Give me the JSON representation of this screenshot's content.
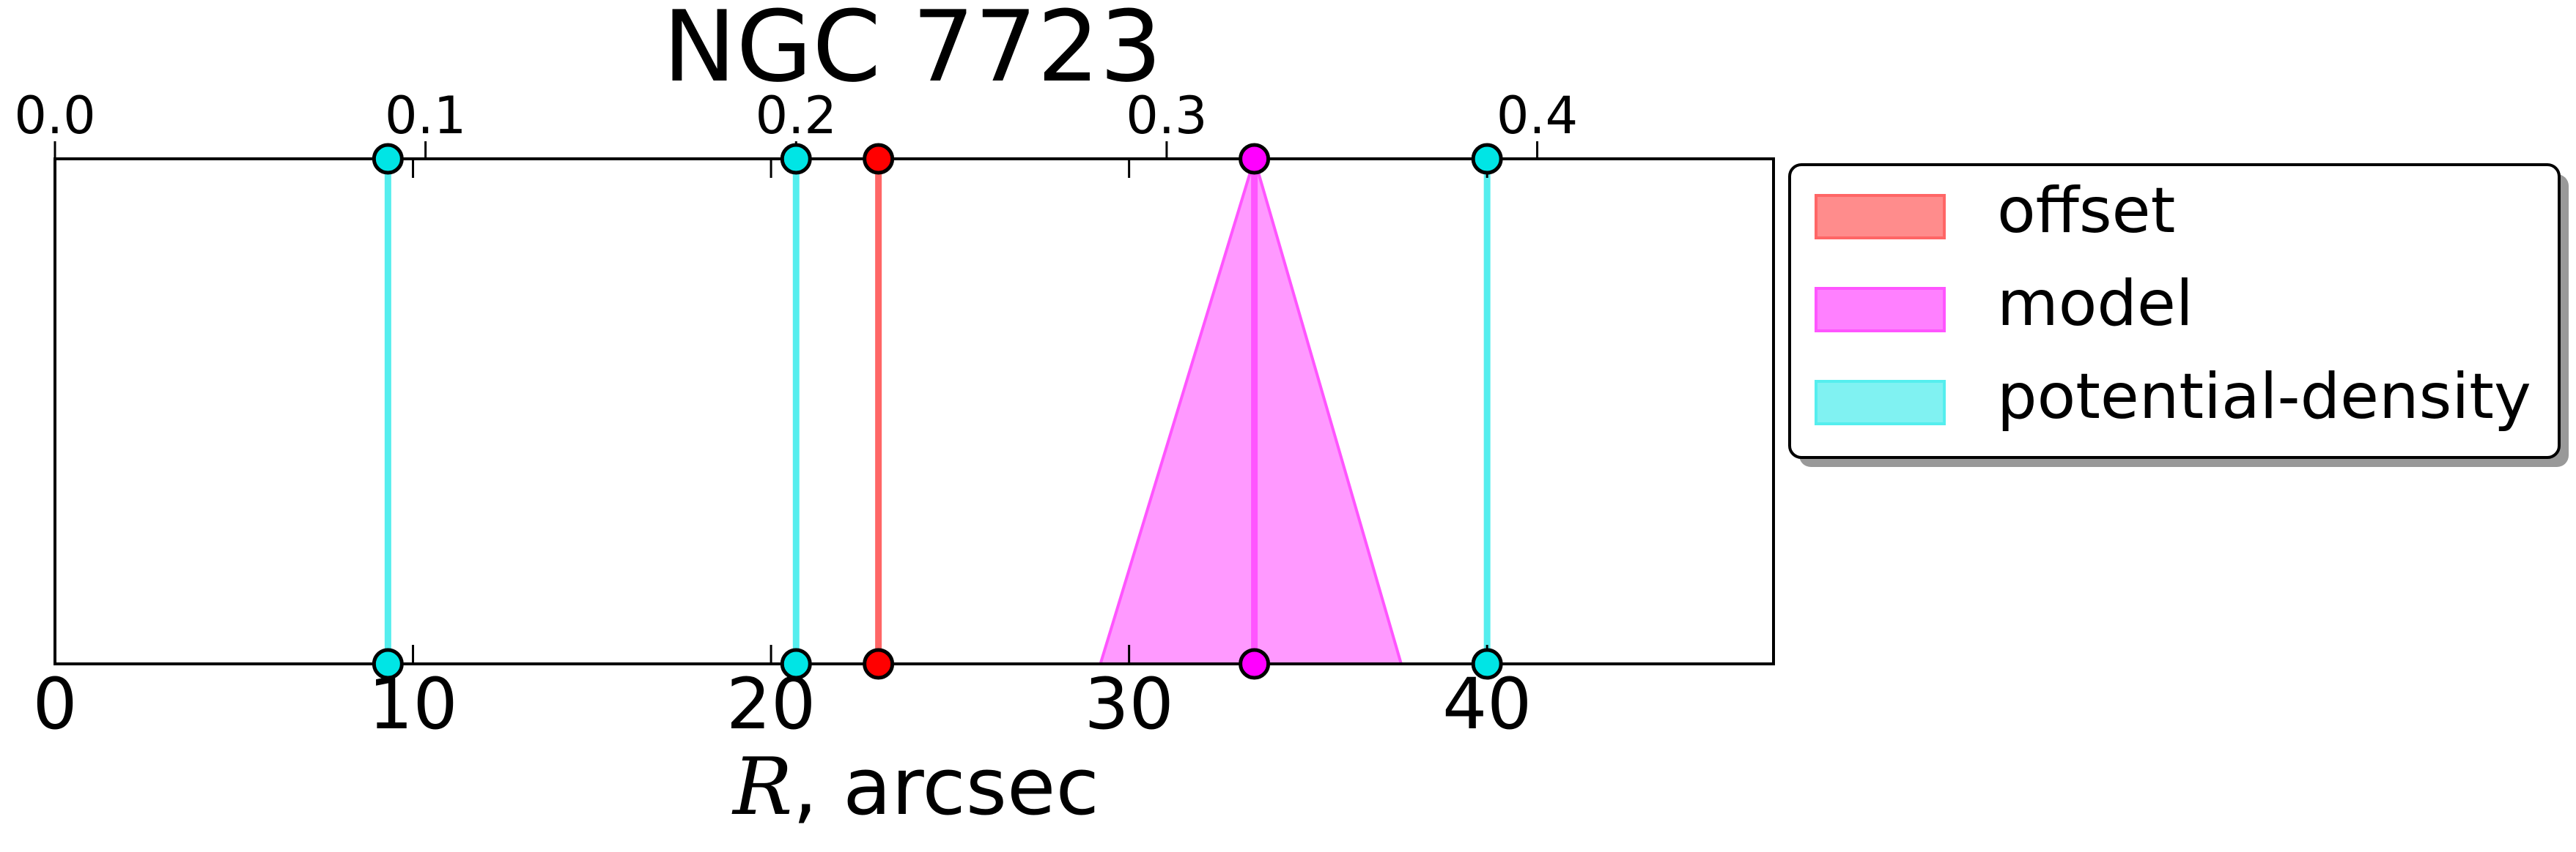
{
  "chart_data": {
    "type": "line",
    "title": "NGC 7723",
    "xlabel_symbol": "R",
    "xlabel_unit": ", arcsec",
    "xlim": [
      0,
      48
    ],
    "x_ticks": [
      "0",
      "10",
      "20",
      "30",
      "40"
    ],
    "x_tick_values": [
      0,
      10,
      20,
      30,
      40
    ],
    "top_axis": {
      "ticks": [
        "0.0",
        "0.1",
        "0.2",
        "0.3",
        "0.4"
      ],
      "tick_positions_in_arcsec": [
        0,
        10.35,
        20.7,
        31.05,
        41.4
      ]
    },
    "grid": false,
    "legend_position": "outside-right",
    "series": [
      {
        "name": "offset",
        "color": "#ff6666",
        "markers": [
          23.0
        ]
      },
      {
        "name": "model",
        "color": "#ff55ff",
        "markers": [
          33.5
        ],
        "band_bottom": [
          29.2,
          37.6
        ],
        "band_top": [
          33.5,
          33.5
        ]
      },
      {
        "name": "potential-density",
        "color": "#55eeee",
        "markers": [
          9.3,
          20.7,
          40.0
        ]
      }
    ],
    "marker_colors": {
      "offset": "#ff0000",
      "model": "#ff00ff",
      "potential-density": "#00e5e5"
    }
  }
}
